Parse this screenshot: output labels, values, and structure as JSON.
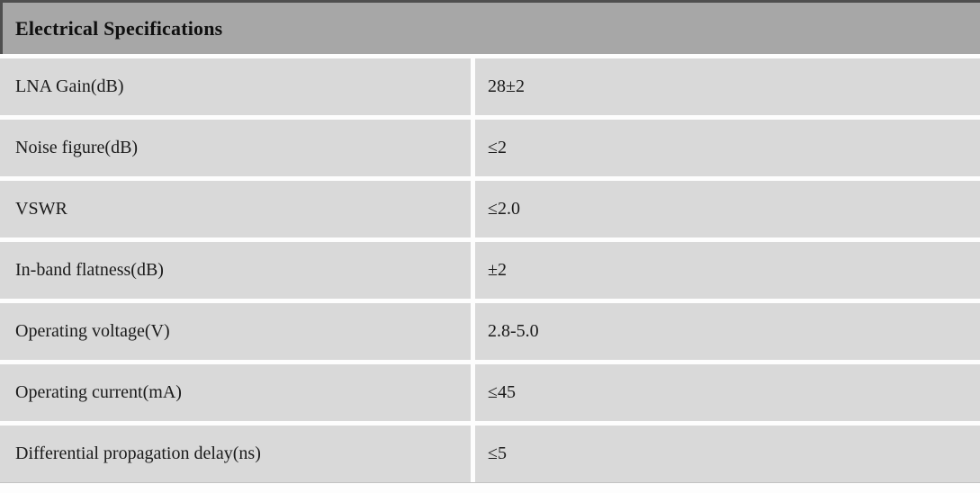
{
  "table": {
    "title": "Electrical Specifications",
    "rows": [
      {
        "parameter": "LNA Gain(dB)",
        "value": "28±2"
      },
      {
        "parameter": "Noise figure(dB)",
        "value": "≤2"
      },
      {
        "parameter": "VSWR",
        "value": "≤2.0"
      },
      {
        "parameter": "In-band flatness(dB)",
        "value": "±2"
      },
      {
        "parameter": "Operating voltage(V)",
        "value": "2.8-5.0"
      },
      {
        "parameter": "Operating current(mA)",
        "value": "≤45"
      },
      {
        "parameter": "Differential propagation delay(ns)",
        "value": "≤5"
      }
    ],
    "colors": {
      "header_bg": "#a7a7a7",
      "row_bg": "#d9d9d9",
      "gutter": "#fdfdfd",
      "header_border": "#4f4f4f",
      "text": "#1b1b1b"
    }
  }
}
